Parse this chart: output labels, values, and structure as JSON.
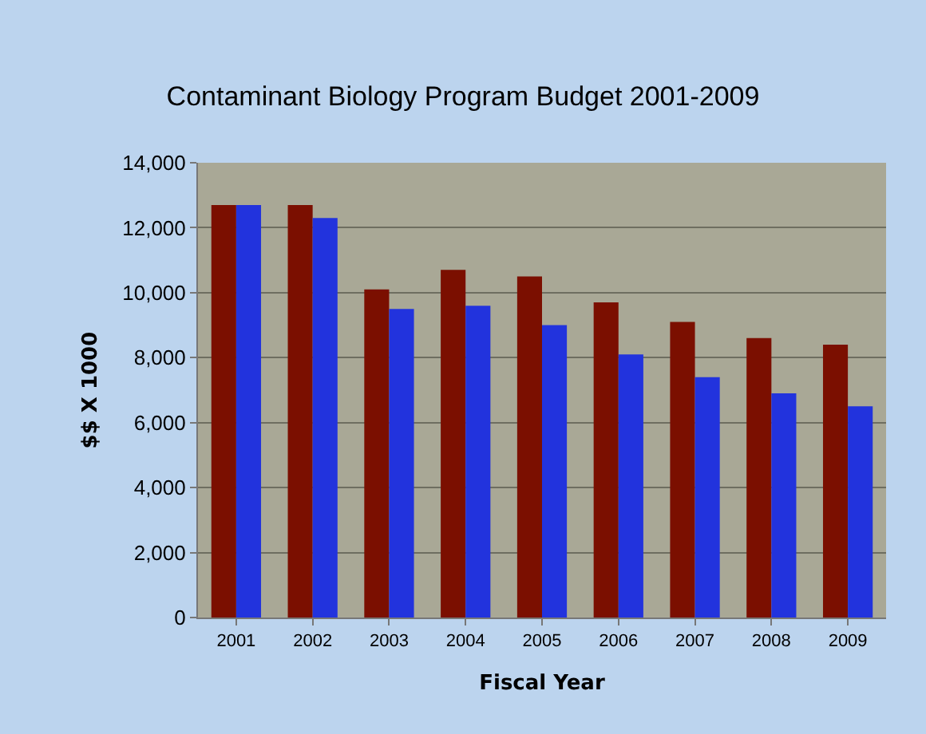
{
  "chart_data": {
    "type": "bar",
    "title": "Contaminant Biology Program Budget 2001-2009",
    "xlabel": "Fiscal Year",
    "ylabel": "$$ X 1000",
    "categories": [
      "2001",
      "2002",
      "2003",
      "2004",
      "2005",
      "2006",
      "2007",
      "2008",
      "2009"
    ],
    "series": [
      {
        "color": "#7b0f00",
        "values": [
          12700,
          12700,
          10100,
          10700,
          10500,
          9700,
          9100,
          8600,
          8400
        ]
      },
      {
        "color": "#2233dd",
        "values": [
          12700,
          12300,
          9500,
          9600,
          9000,
          8100,
          7400,
          6900,
          6500
        ]
      }
    ],
    "ylim": [
      0,
      14000
    ],
    "yticks": [
      {
        "value": 0,
        "label": "0"
      },
      {
        "value": 2000,
        "label": "2,000"
      },
      {
        "value": 4000,
        "label": "4,000"
      },
      {
        "value": 6000,
        "label": "6,000"
      },
      {
        "value": 8000,
        "label": "8,000"
      },
      {
        "value": 10000,
        "label": "10,000"
      },
      {
        "value": 12000,
        "label": "12,000"
      },
      {
        "value": 14000,
        "label": "14,000"
      }
    ],
    "grid": "y"
  }
}
